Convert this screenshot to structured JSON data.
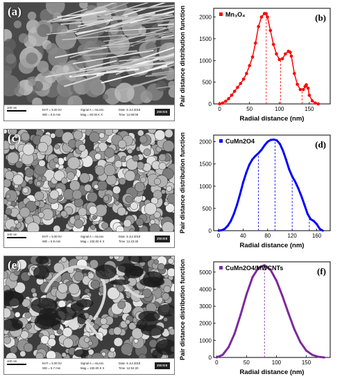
{
  "panels": [
    {
      "sem": {
        "label": "(a)",
        "scale": "100 nm",
        "eht": "EHT = 5.00 kV",
        "wd": "WD = 5.6 mm",
        "signal": "Signal A = InLens",
        "mag": "Mag = 50.00 K X",
        "date": "Date :6 Jul 2018",
        "time": "Time :11:58:09",
        "logo": "ZEISS",
        "texture": "fibers"
      },
      "chart_data": {
        "type": "scatter",
        "panel_label": "(b)",
        "title": "",
        "xlabel": "Radial distance (nm)",
        "ylabel": "Pair distance distribution function",
        "xlim": [
          -10,
          185
        ],
        "ylim": [
          0,
          2200
        ],
        "xticks": [
          0,
          50,
          100,
          150
        ],
        "yticks": [
          0,
          500,
          1000,
          1500,
          2000
        ],
        "color": "#ff0000",
        "series": [
          {
            "name": "Mn₃O₄",
            "x": [
              0,
              5,
              10,
              15,
              20,
              25,
              30,
              35,
              40,
              45,
              50,
              55,
              60,
              65,
              70,
              75,
              78,
              80,
              85,
              90,
              95,
              100,
              105,
              110,
              115,
              118,
              120,
              125,
              130,
              135,
              140,
              143,
              145,
              148,
              150,
              155,
              160,
              165
            ],
            "y": [
              0,
              20,
              60,
              120,
              200,
              290,
              380,
              470,
              570,
              700,
              880,
              1080,
              1400,
              1780,
              2000,
              2080,
              2075,
              2000,
              1690,
              1370,
              1150,
              1020,
              1040,
              1150,
              1210,
              1190,
              1100,
              700,
              450,
              330,
              330,
              400,
              440,
              360,
              200,
              70,
              20,
              0
            ]
          }
        ],
        "vlines": [
          78,
          102,
          138
        ]
      }
    },
    {
      "sem": {
        "label": "(c)",
        "scale": "100 nm",
        "eht": "EHT = 5.00 kV",
        "wd": "WD = 5.9 mm",
        "signal": "Signal A = InLens",
        "mag": "Mag = 100.00 K X",
        "date": "Date :6 Jul 2018",
        "time": "Time :11:43:45",
        "logo": "ZEISS",
        "texture": "grains"
      },
      "chart_data": {
        "type": "line",
        "panel_label": "(d)",
        "title": "",
        "xlabel": "Radial distance (nm)",
        "ylabel": "Pair distance distribution function",
        "xlim": [
          -8,
          182
        ],
        "ylim": [
          0,
          2150
        ],
        "xticks": [
          0,
          40,
          80,
          120,
          160
        ],
        "yticks": [
          0,
          500,
          1000,
          1500,
          2000
        ],
        "color": "#0000ff",
        "series": [
          {
            "name": "CuMn2O4",
            "x": [
              0,
              5,
              10,
              15,
              20,
              25,
              30,
              35,
              40,
              45,
              50,
              55,
              60,
              65,
              70,
              75,
              80,
              85,
              90,
              95,
              100,
              105,
              110,
              115,
              120,
              125,
              130,
              135,
              140,
              145,
              150,
              155,
              160,
              165,
              170
            ],
            "y": [
              0,
              10,
              40,
              110,
              220,
              380,
              580,
              820,
              1080,
              1300,
              1480,
              1600,
              1680,
              1740,
              1820,
              1920,
              2000,
              2040,
              2050,
              2030,
              1950,
              1800,
              1600,
              1380,
              1220,
              1100,
              950,
              780,
              580,
              380,
              260,
              220,
              150,
              40,
              0
            ]
          }
        ],
        "vlines": [
          65,
          92,
          120,
          148
        ]
      }
    },
    {
      "sem": {
        "label": "(e)",
        "scale": "100 nm",
        "eht": "EHT = 5.00 kV",
        "wd": "WD = 5.7 mm",
        "signal": "Signal A = InLens",
        "mag": "Mag = 100.00 K X",
        "date": "Date :6 Jul 2018",
        "time": "Time :12:04:20",
        "logo": "ZEISS",
        "texture": "grains-tubes"
      },
      "chart_data": {
        "type": "line",
        "panel_label": "(f)",
        "title": "",
        "xlabel": "Radial distance (nm)",
        "ylabel": "Pair distance distribution function",
        "xlim": [
          -5,
          190
        ],
        "ylim": [
          0,
          5600
        ],
        "xticks": [
          0,
          50,
          100,
          150
        ],
        "yticks": [
          0,
          1000,
          2000,
          3000,
          4000,
          5000
        ],
        "color": "#7b2a9e",
        "series": [
          {
            "name": "CuMn2O4/MWCNTs",
            "x": [
              0,
              10,
              20,
              30,
              40,
              50,
              60,
              70,
              80,
              90,
              100,
              110,
              120,
              130,
              140,
              150,
              160,
              170,
              180
            ],
            "y": [
              0,
              150,
              600,
              1400,
              2500,
              3700,
              4700,
              5250,
              5400,
              5150,
              4500,
              3600,
              2600,
              1650,
              900,
              400,
              150,
              40,
              0
            ]
          }
        ],
        "vlines": [
          80
        ]
      }
    }
  ]
}
